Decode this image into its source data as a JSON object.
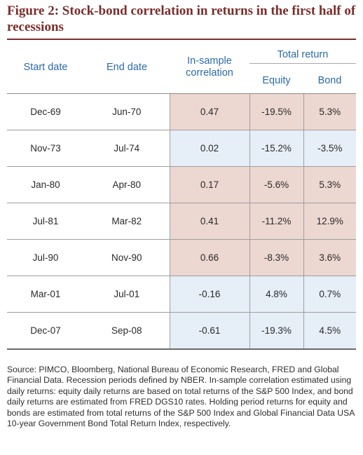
{
  "figure": {
    "title": "Figure 2: Stock-bond correlation in returns in the first half of recessions"
  },
  "table": {
    "headers": {
      "start_date": "Start date",
      "end_date": "End date",
      "correlation": "In-sample correlation",
      "total_return": "Total return",
      "equity": "Equity",
      "bond": "Bond"
    },
    "shading_colors": {
      "positive": "#ecd7d1",
      "negative": "#e6eef7"
    },
    "rows": [
      {
        "start": "Dec-69",
        "end": "Jun-70",
        "correlation": "0.47",
        "equity": "-19.5%",
        "bond": "5.3%"
      },
      {
        "start": "Nov-73",
        "end": "Jul-74",
        "correlation": "0.02",
        "equity": "-15.2%",
        "bond": "-3.5%"
      },
      {
        "start": "Jan-80",
        "end": "Apr-80",
        "correlation": "0.17",
        "equity": "-5.6%",
        "bond": "5.3%"
      },
      {
        "start": "Jul-81",
        "end": "Mar-82",
        "correlation": "0.41",
        "equity": "-11.2%",
        "bond": "12.9%"
      },
      {
        "start": "Jul-90",
        "end": "Nov-90",
        "correlation": "0.66",
        "equity": "-8.3%",
        "bond": "3.6%"
      },
      {
        "start": "Mar-01",
        "end": "Jul-01",
        "correlation": "-0.16",
        "equity": "4.8%",
        "bond": "0.7%"
      },
      {
        "start": "Dec-07",
        "end": "Sep-08",
        "correlation": "-0.61",
        "equity": "-19.3%",
        "bond": "4.5%"
      }
    ]
  },
  "footnote": "Source: PIMCO, Bloomberg, National Bureau of Economic Research, FRED and Global Financial Data. Recession periods defined by NBER. In-sample correlation estimated using daily returns: equity daily returns are based on total returns of the S&P 500 Index, and bond daily returns are estimated from FRED DGS10 rates. Holding period returns for equity and bonds are estimated from total returns of the S&P 500 Index and Global Financial Data USA 10-year Government Bond Total Return Index, respectively."
}
